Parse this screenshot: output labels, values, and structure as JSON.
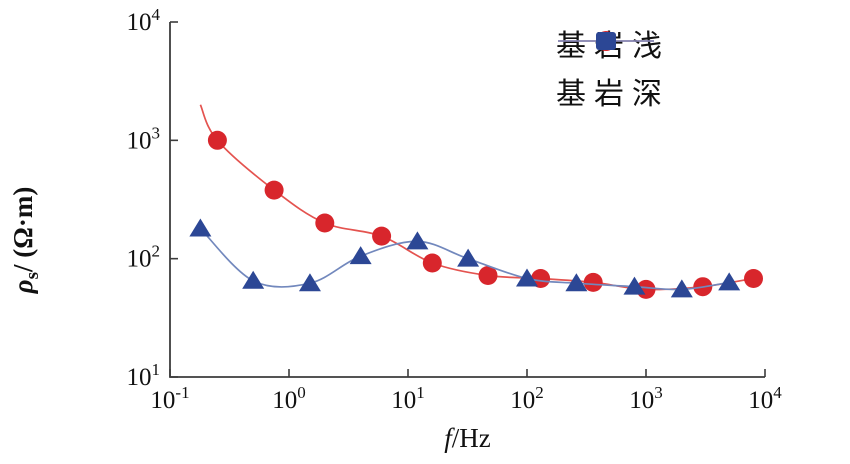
{
  "figure": {
    "background": "#ffffff",
    "axis_color": "#3c3c3c",
    "text_color": "#111111"
  },
  "chart_data": {
    "type": "line",
    "title": "",
    "grid": false,
    "legend_position": "top-right",
    "x_axis": {
      "label": "f/Hz",
      "label_italic": "f",
      "label_rest": "/Hz",
      "scale": "log",
      "range": [
        0.1,
        10000
      ],
      "tick_base": "10",
      "tick_exponents": [
        "-1",
        "0",
        "1",
        "2",
        "3",
        "4"
      ]
    },
    "y_axis": {
      "label": "ρs/(Ω·m)",
      "label_symbol": "ρ",
      "label_subscript": "s",
      "label_rest": "/ (Ω·m)",
      "scale": "log",
      "range": [
        10,
        10000
      ],
      "tick_base": "10",
      "tick_exponents": [
        "1",
        "2",
        "3",
        "4"
      ]
    },
    "series": [
      {
        "name": "基岩浅",
        "marker": "circle",
        "marker_color": "#d8262c",
        "line_color": "#e4534f",
        "points": [
          [
            0.18,
            2000
          ],
          [
            0.25,
            1000
          ],
          [
            0.75,
            380
          ],
          [
            2,
            200
          ],
          [
            6,
            155
          ],
          [
            16,
            92
          ],
          [
            47,
            72
          ],
          [
            130,
            68
          ],
          [
            360,
            63
          ],
          [
            1000,
            55
          ],
          [
            3000,
            58
          ],
          [
            8000,
            68
          ]
        ],
        "unmarked_indices": [
          0
        ]
      },
      {
        "name": "基岩深",
        "marker": "triangle",
        "marker_color": "#2c4795",
        "line_color": "#7288bd",
        "points": [
          [
            0.18,
            180
          ],
          [
            0.5,
            65
          ],
          [
            1.5,
            62
          ],
          [
            4,
            105
          ],
          [
            12,
            140
          ],
          [
            32,
            100
          ],
          [
            100,
            68
          ],
          [
            260,
            62
          ],
          [
            800,
            58
          ],
          [
            2000,
            55
          ],
          [
            5000,
            63
          ]
        ],
        "unmarked_indices": []
      }
    ]
  }
}
